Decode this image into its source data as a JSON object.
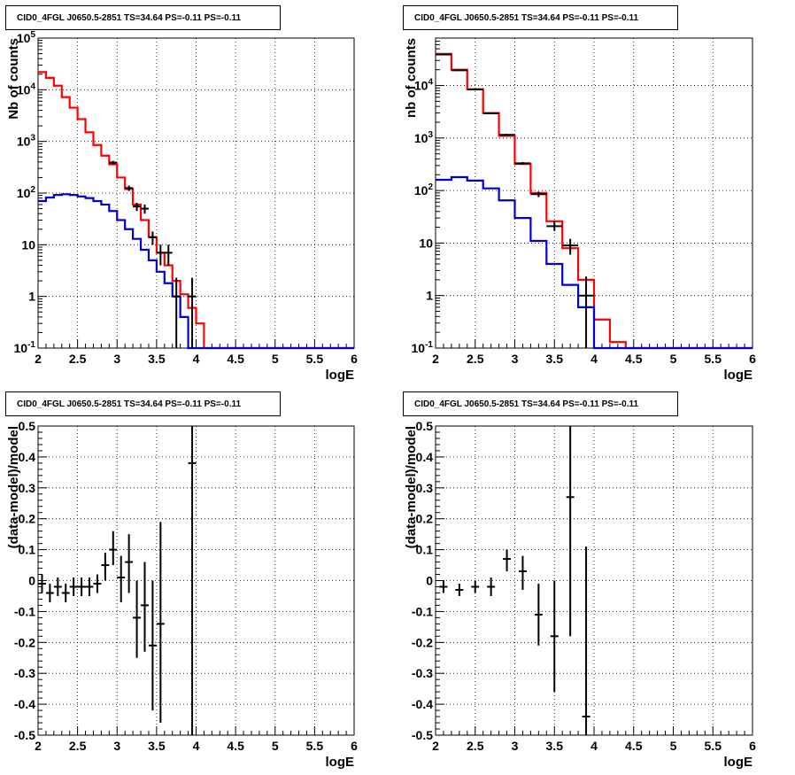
{
  "colors": {
    "data": "#000000",
    "total_model": "#ff0000",
    "source_model": "#0000cc"
  },
  "chart_data": [
    {
      "id": "p1",
      "type": "line",
      "title": "CID0_4FGL J0650.5-2851 TS=34.64 PS=-0.11 PS=-0.11",
      "xlabel": "logE",
      "ylabel": "Nb of counts",
      "log_y": true,
      "xlim": [
        2,
        6
      ],
      "ylim": [
        0.1,
        100000
      ],
      "grid": true,
      "x_ticks": [
        "2",
        "2.5",
        "3",
        "3.5",
        "4",
        "4.5",
        "5",
        "5.5",
        "6"
      ],
      "y_ticks": [
        "10^{-1}",
        "1",
        "10",
        "10^{2}",
        "10^{3}",
        "10^{4}",
        "10^{5}"
      ],
      "bin_edges": [
        2.0,
        2.1,
        2.2,
        2.3,
        2.4,
        2.5,
        2.6,
        2.7,
        2.8,
        2.9,
        3.0,
        3.1,
        3.2,
        3.3,
        3.4,
        3.5,
        3.6,
        3.7,
        3.8,
        3.9,
        4.0,
        4.1,
        4.2,
        4.3,
        4.4,
        4.5,
        4.6,
        4.7,
        4.8,
        4.9,
        5.0,
        5.1,
        5.2,
        5.3,
        5.4,
        5.5,
        5.6,
        5.7,
        5.8,
        5.9,
        6.0
      ],
      "series": [
        {
          "role": "total_model",
          "step": [
            22000,
            17000,
            12000,
            7200,
            4500,
            2700,
            1500,
            850,
            530,
            360,
            200,
            120,
            60,
            30,
            14,
            7,
            4,
            2,
            1.1,
            0.6,
            0.3,
            0.1,
            0.1,
            0.1,
            0.1,
            0.1,
            0.1,
            0.1,
            0.1,
            0.1,
            0.1,
            0.1,
            0.1,
            0.1,
            0.1,
            0.1,
            0.1,
            0.1,
            0.1,
            0.1
          ]
        },
        {
          "role": "source_model",
          "step": [
            70,
            82,
            92,
            95,
            92,
            86,
            80,
            70,
            60,
            45,
            30,
            20,
            13,
            8,
            5,
            3,
            1.8,
            1,
            0.4,
            0.1,
            0.1,
            0.1,
            0.1,
            0.1,
            0.1,
            0.1,
            0.1,
            0.1,
            0.1,
            0.1,
            0.1,
            0.1,
            0.1,
            0.1,
            0.1,
            0.1,
            0.1,
            0.1,
            0.1,
            0.1
          ]
        },
        {
          "role": "data",
          "points": [
            {
              "x": 2.95,
              "y": 390,
              "ylo": 360,
              "yhi": 420
            },
            {
              "x": 3.15,
              "y": 125,
              "ylo": 110,
              "yhi": 140
            },
            {
              "x": 3.25,
              "y": 55,
              "ylo": 45,
              "yhi": 65
            },
            {
              "x": 3.35,
              "y": 50,
              "ylo": 40,
              "yhi": 60
            },
            {
              "x": 3.45,
              "y": 14,
              "ylo": 10,
              "yhi": 18
            },
            {
              "x": 3.55,
              "y": 7,
              "ylo": 4,
              "yhi": 10
            },
            {
              "x": 3.65,
              "y": 7,
              "ylo": 4,
              "yhi": 10
            },
            {
              "x": 3.75,
              "y": 1,
              "ylo": 0.1,
              "yhi": 2.3
            },
            {
              "x": 3.95,
              "y": 1,
              "ylo": 0.1,
              "yhi": 2.3
            }
          ]
        }
      ]
    },
    {
      "id": "p2",
      "type": "line",
      "title": "CID0_4FGL J0650.5-2851 TS=34.64 PS=-0.11 PS=-0.11",
      "xlabel": "logE",
      "ylabel": "nb of counts",
      "log_y": true,
      "xlim": [
        2,
        6
      ],
      "ylim": [
        0.1,
        80000
      ],
      "grid": true,
      "x_ticks": [
        "2",
        "2.5",
        "3",
        "3.5",
        "4",
        "4.5",
        "5",
        "5.5",
        "6"
      ],
      "y_ticks": [
        "10^{-1}",
        "1",
        "10",
        "10^{2}",
        "10^{3}",
        "10^{4}"
      ],
      "bin_edges": [
        2.0,
        2.2,
        2.4,
        2.6,
        2.8,
        3.0,
        3.2,
        3.4,
        3.6,
        3.8,
        4.0,
        4.2,
        4.4,
        4.6,
        4.8,
        5.0,
        5.2,
        5.4,
        5.6,
        5.8,
        6.0
      ],
      "series": [
        {
          "role": "total_model",
          "step": [
            40000,
            20000,
            8500,
            3000,
            1100,
            320,
            90,
            26,
            8,
            2,
            0.35,
            0.13,
            0.1,
            0.1,
            0.1,
            0.1,
            0.1,
            0.1,
            0.1,
            0.1
          ]
        },
        {
          "role": "source_model",
          "step": [
            160,
            180,
            155,
            110,
            65,
            30,
            11,
            4,
            1.6,
            0.6,
            0.1,
            0.1,
            0.1,
            0.1,
            0.1,
            0.1,
            0.1,
            0.1,
            0.1,
            0.1
          ]
        },
        {
          "role": "data",
          "points": [
            {
              "x": 2.1,
              "y": 39000,
              "ylo": 38500,
              "yhi": 39500
            },
            {
              "x": 2.3,
              "y": 19500,
              "ylo": 19200,
              "yhi": 19800
            },
            {
              "x": 2.5,
              "y": 8400,
              "ylo": 8200,
              "yhi": 8600
            },
            {
              "x": 2.7,
              "y": 2950,
              "ylo": 2850,
              "yhi": 3050
            },
            {
              "x": 2.9,
              "y": 1150,
              "ylo": 1100,
              "yhi": 1200
            },
            {
              "x": 3.1,
              "y": 330,
              "ylo": 310,
              "yhi": 350
            },
            {
              "x": 3.3,
              "y": 85,
              "ylo": 75,
              "yhi": 95
            },
            {
              "x": 3.5,
              "y": 21,
              "ylo": 17,
              "yhi": 26
            },
            {
              "x": 3.7,
              "y": 9,
              "ylo": 6,
              "yhi": 12
            },
            {
              "x": 3.9,
              "y": 1,
              "ylo": 0.1,
              "yhi": 2.3
            }
          ]
        }
      ]
    },
    {
      "id": "p3",
      "type": "scatter",
      "title": "CID0_4FGL J0650.5-2851 TS=34.64 PS=-0.11 PS=-0.11",
      "xlabel": "logE",
      "ylabel": "(data-model)/model",
      "log_y": false,
      "xlim": [
        2,
        6
      ],
      "ylim": [
        -0.5,
        0.5
      ],
      "grid": true,
      "x_ticks": [
        "2",
        "2.5",
        "3",
        "3.5",
        "4",
        "4.5",
        "5",
        "5.5",
        "6"
      ],
      "y_ticks": [
        "-0.5",
        "-0.4",
        "-0.3",
        "-0.2",
        "-0.1",
        "0",
        "0.1",
        "0.2",
        "0.3",
        "0.4",
        "0.5"
      ],
      "series": [
        {
          "role": "data",
          "points": [
            {
              "x": 2.05,
              "y": -0.01,
              "ylo": -0.04,
              "yhi": 0.02
            },
            {
              "x": 2.15,
              "y": -0.04,
              "ylo": -0.07,
              "yhi": -0.01
            },
            {
              "x": 2.25,
              "y": -0.02,
              "ylo": -0.05,
              "yhi": 0.01
            },
            {
              "x": 2.35,
              "y": -0.04,
              "ylo": -0.07,
              "yhi": -0.01
            },
            {
              "x": 2.45,
              "y": -0.02,
              "ylo": -0.05,
              "yhi": 0.01
            },
            {
              "x": 2.55,
              "y": -0.02,
              "ylo": -0.05,
              "yhi": 0.01
            },
            {
              "x": 2.65,
              "y": -0.02,
              "ylo": -0.05,
              "yhi": 0.01
            },
            {
              "x": 2.75,
              "y": -0.01,
              "ylo": -0.04,
              "yhi": 0.02
            },
            {
              "x": 2.85,
              "y": 0.05,
              "ylo": 0.0,
              "yhi": 0.09
            },
            {
              "x": 2.95,
              "y": 0.1,
              "ylo": 0.05,
              "yhi": 0.16
            },
            {
              "x": 3.05,
              "y": 0.01,
              "ylo": -0.07,
              "yhi": 0.08
            },
            {
              "x": 3.15,
              "y": 0.06,
              "ylo": -0.04,
              "yhi": 0.15
            },
            {
              "x": 3.25,
              "y": -0.12,
              "ylo": -0.25,
              "yhi": 0.0
            },
            {
              "x": 3.35,
              "y": -0.08,
              "ylo": -0.23,
              "yhi": 0.06
            },
            {
              "x": 3.45,
              "y": -0.21,
              "ylo": -0.42,
              "yhi": 0.0
            },
            {
              "x": 3.55,
              "y": -0.14,
              "ylo": -0.46,
              "yhi": 0.19
            },
            {
              "x": 3.95,
              "y": 0.38,
              "ylo": -0.5,
              "yhi": 0.5
            }
          ]
        }
      ]
    },
    {
      "id": "p4",
      "type": "scatter",
      "title": "CID0_4FGL J0650.5-2851 TS=34.64 PS=-0.11 PS=-0.11",
      "xlabel": "logE",
      "ylabel": "(data-model)/model",
      "log_y": false,
      "xlim": [
        2,
        6
      ],
      "ylim": [
        -0.5,
        0.5
      ],
      "grid": true,
      "x_ticks": [
        "2",
        "2.5",
        "3",
        "3.5",
        "4",
        "4.5",
        "5",
        "5.5",
        "6"
      ],
      "y_ticks": [
        "-0.5",
        "-0.4",
        "-0.3",
        "-0.2",
        "-0.1",
        "0",
        "0.1",
        "0.2",
        "0.3",
        "0.4",
        "0.5"
      ],
      "series": [
        {
          "role": "data",
          "points": [
            {
              "x": 2.1,
              "y": -0.02,
              "ylo": -0.04,
              "yhi": 0.0
            },
            {
              "x": 2.3,
              "y": -0.03,
              "ylo": -0.05,
              "yhi": -0.01
            },
            {
              "x": 2.5,
              "y": -0.02,
              "ylo": -0.04,
              "yhi": 0.0
            },
            {
              "x": 2.7,
              "y": -0.02,
              "ylo": -0.05,
              "yhi": 0.01
            },
            {
              "x": 2.9,
              "y": 0.07,
              "ylo": 0.03,
              "yhi": 0.1
            },
            {
              "x": 3.1,
              "y": 0.03,
              "ylo": -0.03,
              "yhi": 0.08
            },
            {
              "x": 3.3,
              "y": -0.11,
              "ylo": -0.21,
              "yhi": -0.01
            },
            {
              "x": 3.5,
              "y": -0.18,
              "ylo": -0.36,
              "yhi": 0.0
            },
            {
              "x": 3.7,
              "y": 0.27,
              "ylo": -0.18,
              "yhi": 0.5
            },
            {
              "x": 3.9,
              "y": -0.44,
              "ylo": -0.5,
              "yhi": 0.11
            }
          ]
        }
      ]
    }
  ]
}
